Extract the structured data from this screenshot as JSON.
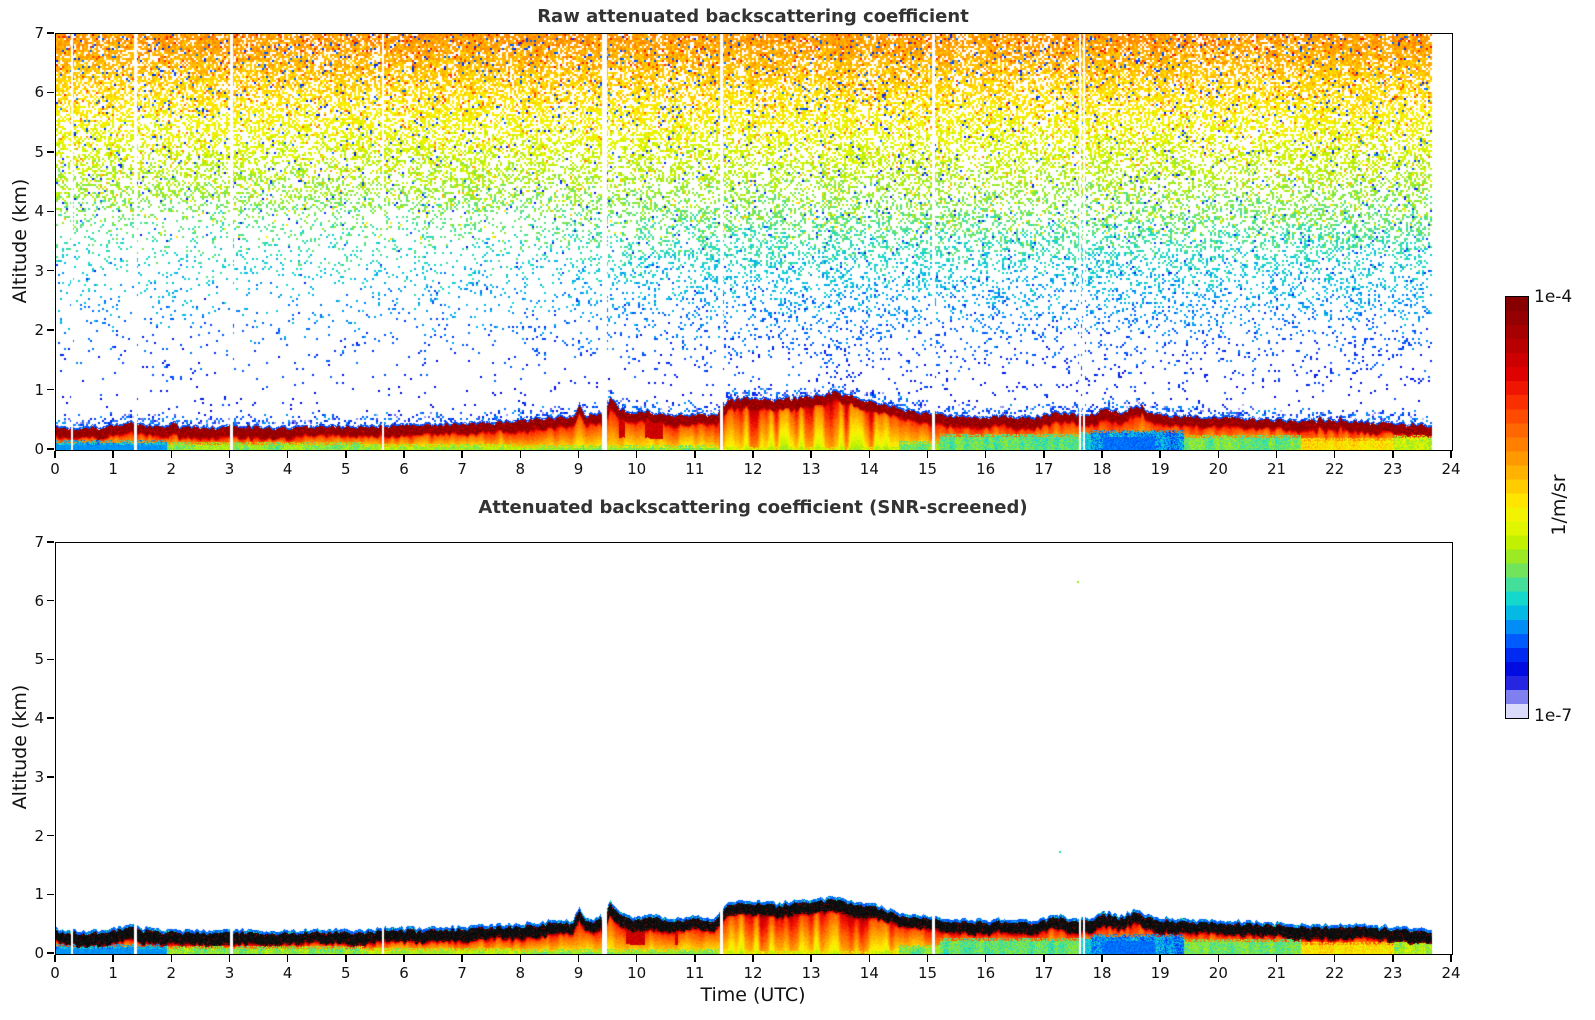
{
  "panels": [
    {
      "id": "raw",
      "title": "Raw attenuated backscattering coefficient"
    },
    {
      "id": "screened",
      "title": "Attenuated backscattering coefficient (SNR-screened)"
    }
  ],
  "axes": {
    "x_label": "Time (UTC)",
    "y_label": "Altitude (km)",
    "x_ticks": [
      0,
      1,
      2,
      3,
      4,
      5,
      6,
      7,
      8,
      9,
      10,
      11,
      12,
      13,
      14,
      15,
      16,
      17,
      18,
      19,
      20,
      21,
      22,
      23,
      24
    ],
    "y_ticks": [
      0,
      1,
      2,
      3,
      4,
      5,
      6,
      7
    ],
    "xlim": [
      0,
      24
    ],
    "ylim": [
      0,
      7
    ]
  },
  "colorbar": {
    "top_label": "1e-4",
    "bottom_label": "1e-7",
    "units_label": "1/m/sr",
    "scale": "log",
    "segments": 30,
    "anchors": [
      [
        0,
        "#ffffff"
      ],
      [
        0.025,
        "#c8c8fa"
      ],
      [
        0.05,
        "#8080f0"
      ],
      [
        0.075,
        "#3838e8"
      ],
      [
        0.1,
        "#0000d8"
      ],
      [
        0.145,
        "#0022f0"
      ],
      [
        0.19,
        "#0066ff"
      ],
      [
        0.235,
        "#00aaf0"
      ],
      [
        0.28,
        "#10d8d0"
      ],
      [
        0.325,
        "#50e090"
      ],
      [
        0.37,
        "#8ee833"
      ],
      [
        0.415,
        "#c0f000"
      ],
      [
        0.46,
        "#e8f800"
      ],
      [
        0.505,
        "#ffee00"
      ],
      [
        0.55,
        "#ffcc00"
      ],
      [
        0.595,
        "#ffaa00"
      ],
      [
        0.64,
        "#ff8800"
      ],
      [
        0.685,
        "#ff6600"
      ],
      [
        0.73,
        "#ff4000"
      ],
      [
        0.775,
        "#f41a00"
      ],
      [
        0.82,
        "#dd0000"
      ],
      [
        0.865,
        "#c40000"
      ],
      [
        0.91,
        "#ab0000"
      ],
      [
        0.955,
        "#930000"
      ],
      [
        1,
        "#7f0000"
      ]
    ]
  },
  "chart_data": [
    {
      "type": "heatmap",
      "title": "Raw attenuated backscattering coefficient",
      "xlabel": "",
      "ylabel": "Altitude (km)",
      "xlim": [
        0,
        24
      ],
      "ylim": [
        0,
        7
      ],
      "value_scale": {
        "min": "1e-7",
        "max": "1e-4",
        "units": "1/m/sr",
        "scale": "log"
      },
      "data_end_time_utc": 23.66,
      "gap_times_utc": [
        {
          "t": 0.27,
          "w": 2
        },
        {
          "t": 1.35,
          "w": 3
        },
        {
          "t": 3.0,
          "w": 3
        },
        {
          "t": 5.62,
          "w": 2
        },
        {
          "t": 9.42,
          "w": 5
        },
        {
          "t": 11.43,
          "w": 3
        },
        {
          "t": 15.07,
          "w": 3
        },
        {
          "t": 17.6,
          "w": 2
        },
        {
          "t": 17.68,
          "w": 2
        }
      ],
      "boundary_layer_top_km": {
        "t": [
          0,
          0.3,
          0.8,
          1.25,
          1.45,
          2,
          2.6,
          3.2,
          4,
          4.6,
          5.2,
          6,
          6.6,
          7.2,
          8,
          8.5,
          8.9,
          9.0,
          9.1,
          9.3,
          9.45,
          9.53,
          9.65,
          9.9,
          10.2,
          10.5,
          10.8,
          11.1,
          11.35,
          11.55,
          11.8,
          12.1,
          12.4,
          12.7,
          13.0,
          13.35,
          13.6,
          13.9,
          14.2,
          14.5,
          14.8,
          15.1,
          15.5,
          16,
          16.3,
          16.6,
          16.9,
          17.2,
          17.5,
          17.8,
          18.05,
          18.3,
          18.55,
          18.7,
          19,
          19.4,
          19.8,
          20.3,
          20.8,
          21.3,
          21.8,
          22.3,
          22.8,
          23.2,
          23.65
        ],
        "h": [
          0.42,
          0.4,
          0.4,
          0.5,
          0.44,
          0.42,
          0.4,
          0.42,
          0.4,
          0.42,
          0.41,
          0.44,
          0.45,
          0.48,
          0.52,
          0.56,
          0.58,
          0.8,
          0.6,
          0.62,
          0.66,
          0.92,
          0.74,
          0.64,
          0.68,
          0.6,
          0.62,
          0.63,
          0.62,
          0.86,
          0.9,
          0.9,
          0.87,
          0.9,
          0.92,
          0.96,
          0.93,
          0.88,
          0.8,
          0.72,
          0.67,
          0.62,
          0.59,
          0.57,
          0.6,
          0.56,
          0.58,
          0.66,
          0.62,
          0.62,
          0.72,
          0.64,
          0.76,
          0.7,
          0.62,
          0.59,
          0.57,
          0.56,
          0.54,
          0.52,
          0.51,
          0.5,
          0.48,
          0.46,
          0.43
        ]
      },
      "noise_density_by_altitude_km": {
        "z": [
          0.45,
          0.7,
          1,
          1.5,
          2,
          2.5,
          3,
          3.5,
          4,
          4.5,
          5,
          5.5,
          6,
          6.5,
          7
        ],
        "d": [
          0.02,
          0.025,
          0.032,
          0.05,
          0.09,
          0.13,
          0.19,
          0.25,
          0.31,
          0.38,
          0.45,
          0.52,
          0.6,
          0.72,
          0.82
        ]
      },
      "surface_zones": [
        {
          "t0": 0.0,
          "t1": 1.9,
          "depth": 0.17,
          "v": 0.25,
          "vr": 0.07,
          "special": "dark_bottom"
        },
        {
          "t0": 1.9,
          "t1": 5.3,
          "depth": 0.13,
          "v": 0.37,
          "vr": 0.06,
          "special": ""
        },
        {
          "t0": 5.3,
          "t1": 8.0,
          "depth": 0.1,
          "v": 0.4,
          "vr": 0.05,
          "special": ""
        },
        {
          "t0": 8.0,
          "t1": 11.4,
          "depth": 0.08,
          "v": 0.37,
          "vr": 0.05,
          "special": ""
        },
        {
          "t0": 11.4,
          "t1": 14.5,
          "depth": 0.05,
          "v": 0.42,
          "vr": 0.04,
          "special": ""
        },
        {
          "t0": 14.5,
          "t1": 15.2,
          "depth": 0.15,
          "v": 0.36,
          "vr": 0.05,
          "special": ""
        },
        {
          "t0": 15.2,
          "t1": 17.6,
          "depth": 0.27,
          "v": 0.33,
          "vr": 0.05,
          "special": ""
        },
        {
          "t0": 17.6,
          "t1": 17.8,
          "depth": 0.3,
          "v": 0.28,
          "vr": 0.05,
          "special": ""
        },
        {
          "t0": 17.8,
          "t1": 19.4,
          "depth": 0.34,
          "v": 0.22,
          "vr": 0.07,
          "special": "deepblue_center"
        },
        {
          "t0": 19.4,
          "t1": 21.4,
          "depth": 0.25,
          "v": 0.35,
          "vr": 0.05,
          "special": ""
        },
        {
          "t0": 21.4,
          "t1": 23.0,
          "depth": 0.2,
          "v": 0.52,
          "vr": 0.07,
          "special": ""
        },
        {
          "t0": 23.0,
          "t1": 23.66,
          "depth": 0.25,
          "v": 0.4,
          "vr": 0.07,
          "special": ""
        }
      ],
      "description": "Dense speckle noise above the boundary layer; amplitude and density increase with altitude (blue at low levels through cyan/green to yellow-orange near 7 km). Dark-red aerosol layer top near 0.4 km rising to ~0.9 km between 11.5 and 14 UTC, with spikes at 9.0 and 9.5 UTC."
    },
    {
      "type": "heatmap",
      "title": "Attenuated backscattering coefficient (SNR-screened)",
      "xlabel": "Time (UTC)",
      "ylabel": "Altitude (km)",
      "xlim": [
        0,
        24
      ],
      "ylim": [
        0,
        7
      ],
      "value_scale": {
        "min": "1e-7",
        "max": "1e-4",
        "units": "1/m/sr",
        "scale": "log"
      },
      "data_end_time_utc": 23.66,
      "screened": true,
      "stray_points": [
        {
          "t": 17.55,
          "z": 6.35,
          "v": 0.38
        },
        {
          "t": 17.25,
          "z": 1.75,
          "v": 0.3
        }
      ],
      "description": "Same boundary-layer structure as raw panel but all low-SNR noise removed (white background). Layer core renders near-black with blue cap line above and orange/yellow/cyan gradient below."
    }
  ]
}
